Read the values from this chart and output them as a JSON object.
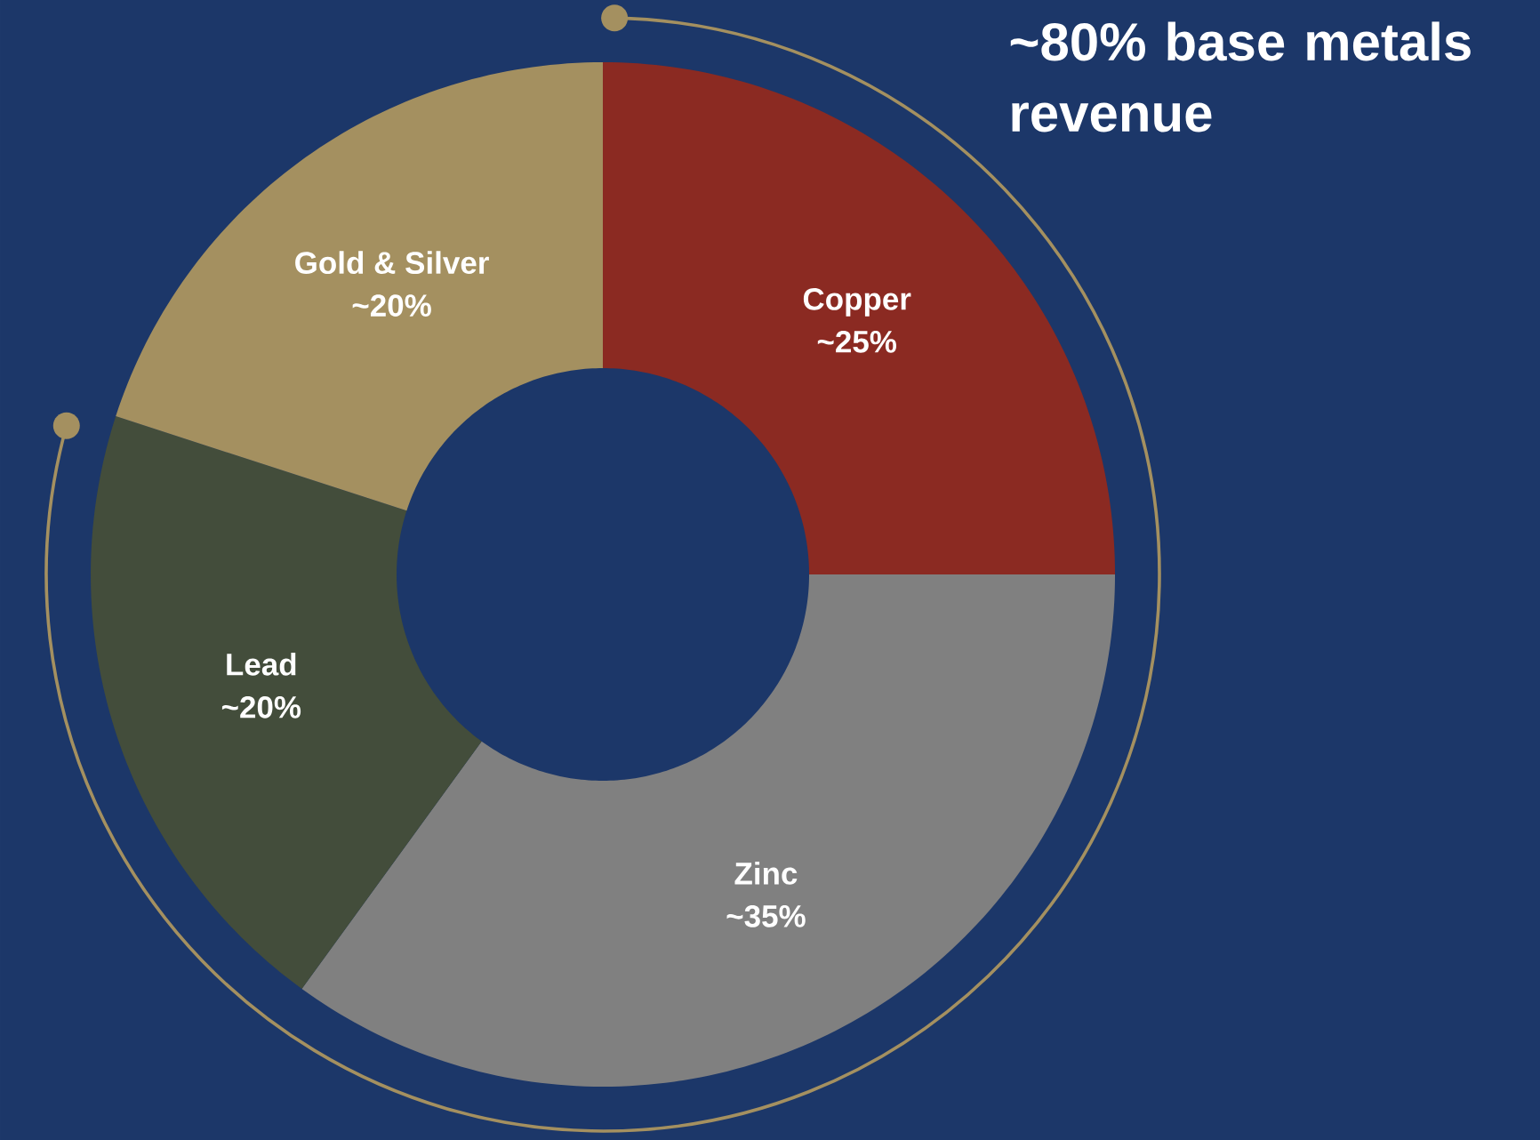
{
  "chart_data": {
    "type": "donut",
    "title": "~80% base metals revenue",
    "categories": [
      "Copper",
      "Zinc",
      "Lead",
      "Gold & Silver"
    ],
    "values": [
      25,
      35,
      20,
      20
    ],
    "colors": [
      "#8b2a22",
      "#808080",
      "#434d3b",
      "#a49060"
    ],
    "value_labels": [
      "~25%",
      "~35%",
      "~20%",
      "~20%"
    ]
  }
}
